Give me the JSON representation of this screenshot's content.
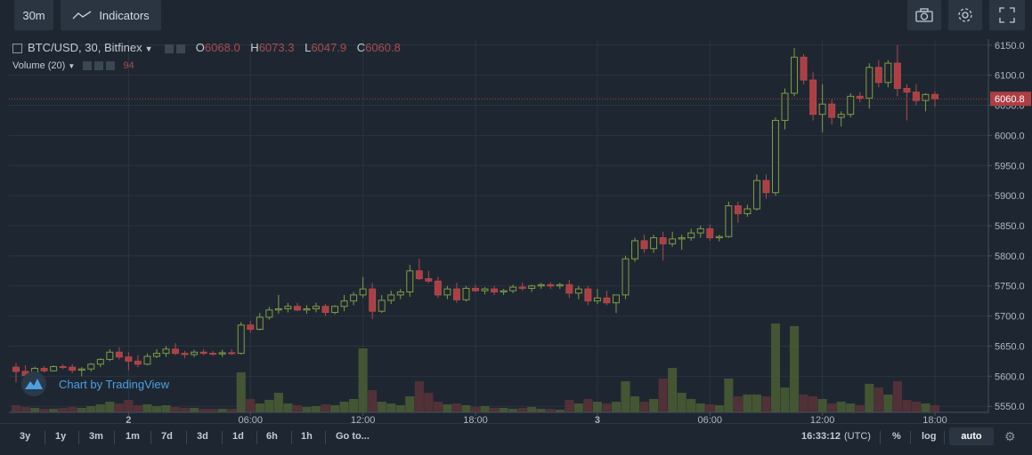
{
  "toolbar": {
    "interval": "30m",
    "indicators_label": "Indicators"
  },
  "legend": {
    "symbol": "BTC/USD, 30, Bitfinex",
    "o_label": "O",
    "o_value": "6068.0",
    "h_label": "H",
    "h_value": "6073.3",
    "l_label": "L",
    "l_value": "6047.9",
    "c_label": "C",
    "c_value": "6060.8",
    "volume_label": "Volume (20)",
    "volume_value": "94"
  },
  "watermark": "Chart by TradingView",
  "bottom": {
    "ranges": [
      "3y",
      "1y",
      "3m",
      "1m",
      "7d",
      "3d",
      "1d",
      "6h",
      "1h"
    ],
    "goto": "Go to...",
    "time": "16:33:12",
    "tz": "(UTC)",
    "pct": "%",
    "log": "log",
    "auto": "auto"
  },
  "colors": {
    "up": "#6b8b3a",
    "down": "#ac3f44",
    "bg": "#1e2731",
    "grid": "#2a3440",
    "price_line": "#ac3f44"
  },
  "chart_data": {
    "type": "candlestick",
    "symbol": "BTC/USD",
    "interval": "30",
    "exchange": "Bitfinex",
    "ylim": [
      5540,
      6160
    ],
    "y_ticks": [
      5550,
      5600,
      5650,
      5700,
      5750,
      5800,
      5850,
      5900,
      5950,
      6000,
      6050,
      6100,
      6150
    ],
    "x_ticks": [
      "2",
      "06:00",
      "12:00",
      "18:00",
      "3",
      "06:00",
      "12:00",
      "18:00"
    ],
    "last_price": "6060.8",
    "candles": [
      {
        "o": 5615,
        "h": 5622,
        "l": 5590,
        "c": 5608,
        "v": 8
      },
      {
        "o": 5608,
        "h": 5618,
        "l": 5595,
        "c": 5601,
        "v": 6
      },
      {
        "o": 5601,
        "h": 5616,
        "l": 5598,
        "c": 5613,
        "v": 5
      },
      {
        "o": 5613,
        "h": 5617,
        "l": 5606,
        "c": 5609,
        "v": 4
      },
      {
        "o": 5609,
        "h": 5618,
        "l": 5608,
        "c": 5616,
        "v": 4
      },
      {
        "o": 5616,
        "h": 5620,
        "l": 5612,
        "c": 5615,
        "v": 5
      },
      {
        "o": 5615,
        "h": 5620,
        "l": 5605,
        "c": 5610,
        "v": 6
      },
      {
        "o": 5610,
        "h": 5615,
        "l": 5600,
        "c": 5612,
        "v": 5
      },
      {
        "o": 5612,
        "h": 5622,
        "l": 5608,
        "c": 5620,
        "v": 7
      },
      {
        "o": 5620,
        "h": 5630,
        "l": 5615,
        "c": 5628,
        "v": 9
      },
      {
        "o": 5628,
        "h": 5645,
        "l": 5625,
        "c": 5640,
        "v": 12
      },
      {
        "o": 5640,
        "h": 5648,
        "l": 5628,
        "c": 5632,
        "v": 10
      },
      {
        "o": 5632,
        "h": 5640,
        "l": 5610,
        "c": 5625,
        "v": 14
      },
      {
        "o": 5625,
        "h": 5635,
        "l": 5615,
        "c": 5620,
        "v": 8
      },
      {
        "o": 5620,
        "h": 5638,
        "l": 5618,
        "c": 5633,
        "v": 9
      },
      {
        "o": 5633,
        "h": 5645,
        "l": 5630,
        "c": 5638,
        "v": 7
      },
      {
        "o": 5638,
        "h": 5650,
        "l": 5632,
        "c": 5645,
        "v": 8
      },
      {
        "o": 5645,
        "h": 5655,
        "l": 5635,
        "c": 5638,
        "v": 6
      },
      {
        "o": 5638,
        "h": 5642,
        "l": 5630,
        "c": 5636,
        "v": 5
      },
      {
        "o": 5636,
        "h": 5644,
        "l": 5632,
        "c": 5640,
        "v": 5
      },
      {
        "o": 5640,
        "h": 5645,
        "l": 5635,
        "c": 5638,
        "v": 4
      },
      {
        "o": 5638,
        "h": 5642,
        "l": 5634,
        "c": 5637,
        "v": 4
      },
      {
        "o": 5637,
        "h": 5644,
        "l": 5632,
        "c": 5639,
        "v": 4
      },
      {
        "o": 5639,
        "h": 5645,
        "l": 5635,
        "c": 5638,
        "v": 4
      },
      {
        "o": 5638,
        "h": 5690,
        "l": 5636,
        "c": 5685,
        "v": 45
      },
      {
        "o": 5685,
        "h": 5692,
        "l": 5672,
        "c": 5678,
        "v": 15
      },
      {
        "o": 5678,
        "h": 5705,
        "l": 5676,
        "c": 5698,
        "v": 10
      },
      {
        "o": 5698,
        "h": 5715,
        "l": 5694,
        "c": 5710,
        "v": 14
      },
      {
        "o": 5710,
        "h": 5735,
        "l": 5704,
        "c": 5712,
        "v": 22
      },
      {
        "o": 5712,
        "h": 5722,
        "l": 5706,
        "c": 5716,
        "v": 10
      },
      {
        "o": 5716,
        "h": 5722,
        "l": 5708,
        "c": 5710,
        "v": 8
      },
      {
        "o": 5710,
        "h": 5718,
        "l": 5704,
        "c": 5712,
        "v": 6
      },
      {
        "o": 5712,
        "h": 5722,
        "l": 5706,
        "c": 5716,
        "v": 7
      },
      {
        "o": 5716,
        "h": 5720,
        "l": 5700,
        "c": 5706,
        "v": 9
      },
      {
        "o": 5706,
        "h": 5718,
        "l": 5703,
        "c": 5716,
        "v": 8
      },
      {
        "o": 5716,
        "h": 5735,
        "l": 5708,
        "c": 5725,
        "v": 12
      },
      {
        "o": 5725,
        "h": 5740,
        "l": 5718,
        "c": 5735,
        "v": 15
      },
      {
        "o": 5735,
        "h": 5765,
        "l": 5730,
        "c": 5745,
        "v": 72
      },
      {
        "o": 5745,
        "h": 5755,
        "l": 5695,
        "c": 5708,
        "v": 25
      },
      {
        "o": 5708,
        "h": 5735,
        "l": 5705,
        "c": 5726,
        "v": 12
      },
      {
        "o": 5726,
        "h": 5742,
        "l": 5720,
        "c": 5735,
        "v": 10
      },
      {
        "o": 5735,
        "h": 5745,
        "l": 5728,
        "c": 5740,
        "v": 8
      },
      {
        "o": 5740,
        "h": 5785,
        "l": 5732,
        "c": 5775,
        "v": 18
      },
      {
        "o": 5775,
        "h": 5795,
        "l": 5760,
        "c": 5762,
        "v": 35
      },
      {
        "o": 5762,
        "h": 5775,
        "l": 5755,
        "c": 5758,
        "v": 22
      },
      {
        "o": 5758,
        "h": 5765,
        "l": 5730,
        "c": 5735,
        "v": 12
      },
      {
        "o": 5735,
        "h": 5750,
        "l": 5728,
        "c": 5745,
        "v": 9
      },
      {
        "o": 5745,
        "h": 5755,
        "l": 5722,
        "c": 5727,
        "v": 10
      },
      {
        "o": 5727,
        "h": 5750,
        "l": 5724,
        "c": 5746,
        "v": 8
      },
      {
        "o": 5746,
        "h": 5752,
        "l": 5740,
        "c": 5742,
        "v": 6
      },
      {
        "o": 5742,
        "h": 5748,
        "l": 5736,
        "c": 5745,
        "v": 7
      },
      {
        "o": 5745,
        "h": 5750,
        "l": 5735,
        "c": 5740,
        "v": 5
      },
      {
        "o": 5740,
        "h": 5745,
        "l": 5735,
        "c": 5742,
        "v": 5
      },
      {
        "o": 5742,
        "h": 5752,
        "l": 5738,
        "c": 5748,
        "v": 4
      },
      {
        "o": 5748,
        "h": 5755,
        "l": 5742,
        "c": 5746,
        "v": 5
      },
      {
        "o": 5746,
        "h": 5752,
        "l": 5740,
        "c": 5750,
        "v": 6
      },
      {
        "o": 5750,
        "h": 5755,
        "l": 5745,
        "c": 5752,
        "v": 4
      },
      {
        "o": 5752,
        "h": 5756,
        "l": 5745,
        "c": 5750,
        "v": 4
      },
      {
        "o": 5750,
        "h": 5755,
        "l": 5745,
        "c": 5752,
        "v": 3
      },
      {
        "o": 5752,
        "h": 5760,
        "l": 5730,
        "c": 5738,
        "v": 14
      },
      {
        "o": 5738,
        "h": 5750,
        "l": 5728,
        "c": 5745,
        "v": 10
      },
      {
        "o": 5745,
        "h": 5750,
        "l": 5718,
        "c": 5725,
        "v": 15
      },
      {
        "o": 5725,
        "h": 5745,
        "l": 5720,
        "c": 5730,
        "v": 12
      },
      {
        "o": 5730,
        "h": 5742,
        "l": 5718,
        "c": 5722,
        "v": 10
      },
      {
        "o": 5722,
        "h": 5735,
        "l": 5705,
        "c": 5735,
        "v": 12
      },
      {
        "o": 5735,
        "h": 5800,
        "l": 5728,
        "c": 5795,
        "v": 35
      },
      {
        "o": 5795,
        "h": 5830,
        "l": 5790,
        "c": 5825,
        "v": 18
      },
      {
        "o": 5825,
        "h": 5835,
        "l": 5805,
        "c": 5812,
        "v": 12
      },
      {
        "o": 5812,
        "h": 5835,
        "l": 5805,
        "c": 5830,
        "v": 15
      },
      {
        "o": 5830,
        "h": 5840,
        "l": 5792,
        "c": 5820,
        "v": 38
      },
      {
        "o": 5820,
        "h": 5840,
        "l": 5815,
        "c": 5828,
        "v": 50
      },
      {
        "o": 5828,
        "h": 5835,
        "l": 5810,
        "c": 5830,
        "v": 22
      },
      {
        "o": 5830,
        "h": 5845,
        "l": 5825,
        "c": 5838,
        "v": 15
      },
      {
        "o": 5838,
        "h": 5850,
        "l": 5830,
        "c": 5845,
        "v": 10
      },
      {
        "o": 5845,
        "h": 5852,
        "l": 5825,
        "c": 5830,
        "v": 9
      },
      {
        "o": 5830,
        "h": 5835,
        "l": 5824,
        "c": 5832,
        "v": 8
      },
      {
        "o": 5832,
        "h": 5890,
        "l": 5830,
        "c": 5883,
        "v": 38
      },
      {
        "o": 5883,
        "h": 5890,
        "l": 5855,
        "c": 5870,
        "v": 18
      },
      {
        "o": 5870,
        "h": 5885,
        "l": 5865,
        "c": 5878,
        "v": 20
      },
      {
        "o": 5878,
        "h": 5935,
        "l": 5875,
        "c": 5925,
        "v": 20
      },
      {
        "o": 5925,
        "h": 5935,
        "l": 5895,
        "c": 5905,
        "v": 18
      },
      {
        "o": 5905,
        "h": 6030,
        "l": 5900,
        "c": 6025,
        "v": 100
      },
      {
        "o": 6025,
        "h": 6078,
        "l": 6010,
        "c": 6070,
        "v": 28
      },
      {
        "o": 6070,
        "h": 6145,
        "l": 6065,
        "c": 6130,
        "v": 97
      },
      {
        "o": 6130,
        "h": 6135,
        "l": 6085,
        "c": 6092,
        "v": 20
      },
      {
        "o": 6092,
        "h": 6105,
        "l": 6025,
        "c": 6035,
        "v": 18
      },
      {
        "o": 6035,
        "h": 6085,
        "l": 6005,
        "c": 6052,
        "v": 15
      },
      {
        "o": 6052,
        "h": 6060,
        "l": 6018,
        "c": 6030,
        "v": 10
      },
      {
        "o": 6030,
        "h": 6040,
        "l": 6015,
        "c": 6035,
        "v": 12
      },
      {
        "o": 6035,
        "h": 6070,
        "l": 6030,
        "c": 6065,
        "v": 10
      },
      {
        "o": 6065,
        "h": 6072,
        "l": 6055,
        "c": 6062,
        "v": 8
      },
      {
        "o": 6062,
        "h": 6120,
        "l": 6045,
        "c": 6113,
        "v": 32
      },
      {
        "o": 6113,
        "h": 6125,
        "l": 6080,
        "c": 6088,
        "v": 28
      },
      {
        "o": 6088,
        "h": 6125,
        "l": 6080,
        "c": 6120,
        "v": 20
      },
      {
        "o": 6120,
        "h": 6150,
        "l": 6065,
        "c": 6078,
        "v": 35
      },
      {
        "o": 6078,
        "h": 6085,
        "l": 6025,
        "c": 6072,
        "v": 14
      },
      {
        "o": 6072,
        "h": 6085,
        "l": 6050,
        "c": 6058,
        "v": 12
      },
      {
        "o": 6058,
        "h": 6070,
        "l": 6040,
        "c": 6068,
        "v": 10
      },
      {
        "o": 6068,
        "h": 6073,
        "l": 6048,
        "c": 6061,
        "v": 8
      }
    ]
  }
}
